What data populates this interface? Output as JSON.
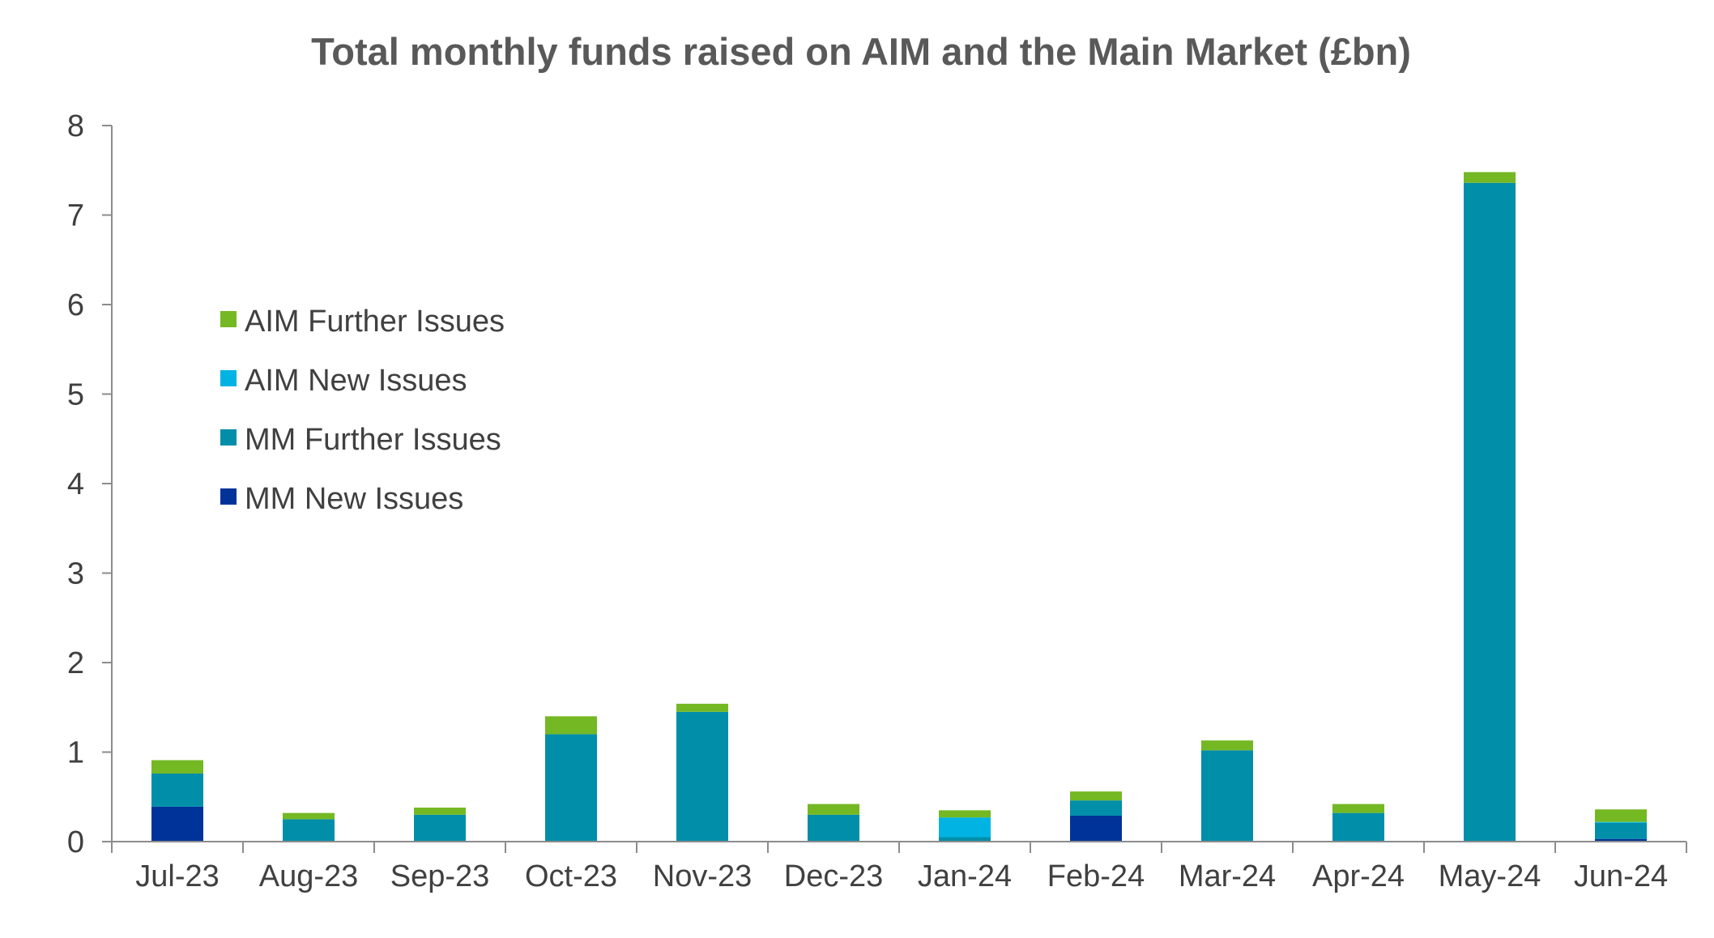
{
  "chart_data": {
    "type": "bar",
    "stacked": true,
    "title": "Total monthly funds raised on AIM and the Main Market (£bn)",
    "xlabel": "",
    "ylabel": "",
    "ylim": [
      0,
      8
    ],
    "yticks": [
      "0",
      "1",
      "2",
      "3",
      "4",
      "5",
      "6",
      "7",
      "8"
    ],
    "categories": [
      "Jul-23",
      "Aug-23",
      "Sep-23",
      "Oct-23",
      "Nov-23",
      "Dec-23",
      "Jan-24",
      "Feb-24",
      "Mar-24",
      "Apr-24",
      "May-24",
      "Jun-24"
    ],
    "series": [
      {
        "name": "MM New Issues",
        "color": "#003399",
        "values": [
          0.39,
          0.0,
          0.0,
          0.0,
          0.0,
          0.0,
          0.0,
          0.29,
          0.0,
          0.0,
          0.0,
          0.03
        ]
      },
      {
        "name": "MM Further Issues",
        "color": "#008EA9",
        "values": [
          0.37,
          0.25,
          0.3,
          1.2,
          1.45,
          0.3,
          0.05,
          0.17,
          1.02,
          0.32,
          7.36,
          0.18
        ]
      },
      {
        "name": "AIM New Issues",
        "color": "#00B3E3",
        "values": [
          0.0,
          0.0,
          0.0,
          0.0,
          0.0,
          0.0,
          0.22,
          0.0,
          0.0,
          0.0,
          0.0,
          0.01
        ]
      },
      {
        "name": "AIM Further Issues",
        "color": "#74B824",
        "values": [
          0.15,
          0.07,
          0.08,
          0.2,
          0.09,
          0.12,
          0.08,
          0.1,
          0.11,
          0.1,
          0.12,
          0.14
        ]
      }
    ],
    "legend": {
      "position": "upper-left",
      "order": [
        "AIM Further Issues",
        "AIM New Issues",
        "MM Further Issues",
        "MM New Issues"
      ]
    },
    "grid": false
  }
}
